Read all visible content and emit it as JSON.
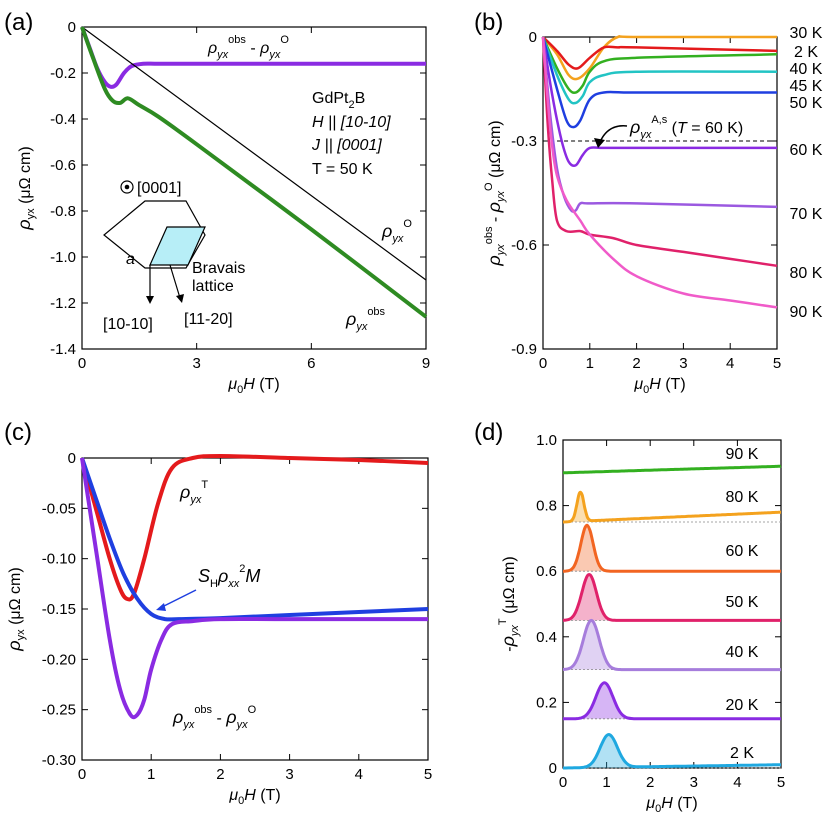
{
  "chart_data": [
    {
      "panel": "(a)",
      "type": "line",
      "xlabel": "μ0H (T)",
      "ylabel": "ρyx (μΩ cm)",
      "xlim": [
        0,
        9
      ],
      "ylim": [
        -1.4,
        0
      ],
      "xticks": [
        "0",
        "3",
        "6",
        "9"
      ],
      "yticks": [
        "0",
        "-0.2",
        "-0.4",
        "-0.6",
        "-0.8",
        "-1.0",
        "-1.2",
        "-1.4"
      ],
      "annotations": [
        "GdPt2B",
        "H || [10-10]",
        "J || [0001]",
        "T = 50 K",
        "[0001]",
        "a",
        "Bravais lattice",
        "[10-10]",
        "[11-20]"
      ],
      "series": [
        {
          "name": "ρyx^obs - ρyx^O",
          "color": "#8a2be2",
          "x": [
            0,
            0.2,
            0.4,
            0.6,
            0.75,
            0.9,
            1.1,
            1.3,
            1.6,
            2,
            3,
            6,
            9
          ],
          "y": [
            0,
            -0.09,
            -0.18,
            -0.24,
            -0.26,
            -0.25,
            -0.2,
            -0.17,
            -0.16,
            -0.16,
            -0.16,
            -0.16,
            -0.16
          ]
        },
        {
          "name": "ρyx^O",
          "color": "#000000",
          "x": [
            0,
            9
          ],
          "y": [
            0,
            -1.1
          ]
        },
        {
          "name": "ρyx^obs",
          "color": "#2e8b22",
          "x": [
            0,
            0.3,
            0.6,
            0.8,
            1.0,
            1.2,
            1.5,
            2,
            3,
            6,
            9
          ],
          "y": [
            0,
            -0.14,
            -0.27,
            -0.32,
            -0.33,
            -0.31,
            -0.34,
            -0.39,
            -0.51,
            -0.88,
            -1.26
          ]
        }
      ]
    },
    {
      "panel": "(b)",
      "type": "line",
      "xlabel": "μ0H (T)",
      "ylabel": "ρyx^obs - ρyx^O (μΩ cm)",
      "xlim": [
        0,
        5
      ],
      "ylim": [
        -0.9,
        0
      ],
      "xticks": [
        "0",
        "1",
        "2",
        "3",
        "4",
        "5"
      ],
      "yticks": [
        "0",
        "-0.3",
        "-0.6",
        "-0.9"
      ],
      "annotations": [
        "ρyx^A,s (T = 60 K)"
      ],
      "series": [
        {
          "name": "30 K",
          "color": "#f4a21e",
          "x": [
            0,
            0.3,
            0.55,
            0.75,
            1.0,
            1.3,
            1.6,
            2,
            5
          ],
          "y": [
            0,
            -0.05,
            -0.11,
            -0.12,
            -0.09,
            -0.03,
            0,
            0,
            0
          ]
        },
        {
          "name": "2 K",
          "color": "#e41a1c",
          "x": [
            0,
            0.3,
            0.55,
            0.75,
            1.0,
            1.3,
            1.6,
            2,
            5
          ],
          "y": [
            0,
            -0.04,
            -0.08,
            -0.09,
            -0.06,
            -0.03,
            -0.03,
            -0.03,
            -0.04
          ]
        },
        {
          "name": "40 K",
          "color": "#33b020",
          "x": [
            0,
            0.3,
            0.55,
            0.7,
            0.85,
            1.0,
            1.3,
            2,
            5
          ],
          "y": [
            0,
            -0.09,
            -0.15,
            -0.16,
            -0.14,
            -0.1,
            -0.07,
            -0.06,
            -0.05
          ]
        },
        {
          "name": "45 K",
          "color": "#22c4c4",
          "x": [
            0,
            0.3,
            0.55,
            0.7,
            0.85,
            1.0,
            1.3,
            2,
            5
          ],
          "y": [
            0,
            -0.11,
            -0.18,
            -0.19,
            -0.17,
            -0.13,
            -0.11,
            -0.1,
            -0.1
          ]
        },
        {
          "name": "50 K",
          "color": "#1f3fe0",
          "x": [
            0,
            0.3,
            0.5,
            0.65,
            0.8,
            1.0,
            1.3,
            2,
            5
          ],
          "y": [
            0,
            -0.15,
            -0.24,
            -0.26,
            -0.24,
            -0.18,
            -0.16,
            -0.16,
            -0.16
          ]
        },
        {
          "name": "60 K",
          "color": "#8a2be2",
          "x": [
            0,
            0.2,
            0.4,
            0.55,
            0.7,
            0.85,
            1.0,
            1.3,
            2,
            5
          ],
          "y": [
            0,
            -0.17,
            -0.3,
            -0.36,
            -0.37,
            -0.34,
            -0.32,
            -0.32,
            -0.32,
            -0.32
          ]
        },
        {
          "name": "70 K",
          "color": "#9b59e0",
          "x": [
            0,
            0.15,
            0.3,
            0.45,
            0.6,
            0.7,
            0.8,
            1,
            2,
            5
          ],
          "y": [
            0,
            -0.22,
            -0.38,
            -0.46,
            -0.5,
            -0.5,
            -0.48,
            -0.48,
            -0.48,
            -0.49
          ]
        },
        {
          "name": "80 K",
          "color": "#e0216a",
          "x": [
            0,
            0.1,
            0.2,
            0.3,
            0.5,
            0.8,
            1.0,
            1.5,
            2,
            3,
            4,
            5
          ],
          "y": [
            0,
            -0.25,
            -0.42,
            -0.53,
            -0.56,
            -0.56,
            -0.57,
            -0.58,
            -0.6,
            -0.62,
            -0.64,
            -0.66
          ]
        },
        {
          "name": "90 K",
          "color": "#f05bc9",
          "x": [
            0,
            0.1,
            0.2,
            0.3,
            0.5,
            0.8,
            1.0,
            1.5,
            2,
            3,
            4,
            5
          ],
          "y": [
            0,
            -0.18,
            -0.32,
            -0.4,
            -0.47,
            -0.53,
            -0.57,
            -0.64,
            -0.69,
            -0.74,
            -0.76,
            -0.78
          ]
        }
      ],
      "dashed_lines": [
        0,
        -0.3
      ]
    },
    {
      "panel": "(c)",
      "type": "line",
      "xlabel": "μ0H (T)",
      "ylabel": "ρyx (μΩ cm)",
      "xlim": [
        0,
        5
      ],
      "ylim": [
        -0.3,
        0
      ],
      "xticks": [
        "0",
        "1",
        "2",
        "3",
        "4",
        "5"
      ],
      "yticks": [
        "0",
        "-0.05",
        "-0.10",
        "-0.15",
        "-0.20",
        "-0.25",
        "-0.30"
      ],
      "series": [
        {
          "name": "ρyx^T",
          "color": "#e41a1c",
          "x": [
            0,
            0.2,
            0.4,
            0.55,
            0.65,
            0.75,
            0.9,
            1.1,
            1.3,
            1.6,
            2,
            3,
            4,
            5
          ],
          "y": [
            0,
            -0.05,
            -0.1,
            -0.13,
            -0.14,
            -0.135,
            -0.1,
            -0.045,
            -0.01,
            0,
            0.002,
            0,
            -0.002,
            -0.005
          ]
        },
        {
          "name": "SHρxx^2M",
          "color": "#1f3fe0",
          "x": [
            0,
            0.2,
            0.4,
            0.6,
            0.8,
            1.0,
            1.2,
            1.4,
            2,
            3,
            4,
            5
          ],
          "y": [
            0,
            -0.04,
            -0.08,
            -0.115,
            -0.14,
            -0.155,
            -0.16,
            -0.16,
            -0.159,
            -0.156,
            -0.153,
            -0.15
          ]
        },
        {
          "name": "ρyx^obs - ρyx^O",
          "color": "#8a2be2",
          "x": [
            0,
            0.2,
            0.4,
            0.55,
            0.7,
            0.8,
            0.9,
            1.0,
            1.15,
            1.3,
            1.6,
            2,
            3,
            5
          ],
          "y": [
            0,
            -0.09,
            -0.18,
            -0.23,
            -0.255,
            -0.255,
            -0.24,
            -0.21,
            -0.18,
            -0.165,
            -0.162,
            -0.16,
            -0.16,
            -0.16
          ]
        }
      ],
      "annotations": [
        "SHρxx^2M"
      ]
    },
    {
      "panel": "(d)",
      "type": "area",
      "xlabel": "μ0H (T)",
      "ylabel": "-ρyx^T (μΩ cm)",
      "xlim": [
        0,
        5
      ],
      "ylim": [
        0,
        1.0
      ],
      "xticks": [
        "0",
        "1",
        "2",
        "3",
        "4",
        "5"
      ],
      "yticks": [
        "0",
        "0.2",
        "0.4",
        "0.6",
        "0.8",
        "1.0"
      ],
      "series": [
        {
          "name": "90 K",
          "color": "#33b020",
          "base": 0.9,
          "peak_x": 0,
          "peak_h": 0,
          "width": 0,
          "end": 0.92
        },
        {
          "name": "80 K",
          "color": "#f4a21e",
          "base": 0.75,
          "peak_x": 0.4,
          "peak_h": 0.09,
          "width": 0.14,
          "end": 0.78
        },
        {
          "name": "60 K",
          "color": "#f26522",
          "base": 0.6,
          "peak_x": 0.55,
          "peak_h": 0.14,
          "width": 0.25,
          "end": 0.6
        },
        {
          "name": "50 K",
          "color": "#e0216a",
          "base": 0.45,
          "peak_x": 0.6,
          "peak_h": 0.14,
          "width": 0.3,
          "end": 0.45
        },
        {
          "name": "40 K",
          "color": "#a67ddc",
          "base": 0.3,
          "peak_x": 0.65,
          "peak_h": 0.15,
          "width": 0.33,
          "end": 0.3
        },
        {
          "name": "20 K",
          "color": "#8a2be2",
          "base": 0.15,
          "peak_x": 0.95,
          "peak_h": 0.11,
          "width": 0.35,
          "end": 0.15
        },
        {
          "name": "2 K",
          "color": "#1fa8e0",
          "base": 0.0,
          "peak_x": 1.05,
          "peak_h": 0.1,
          "width": 0.35,
          "end": 0.01
        }
      ]
    }
  ],
  "labels": {
    "a_panel": "(a)",
    "b_panel": "(b)",
    "c_panel": "(c)",
    "d_panel": "(d)",
    "gd": "GdPt",
    "gd_sub": "2",
    "gd_b": "B",
    "h_par": "H || [10-10]",
    "j_par": "J || [0001]",
    "t50": "T = 50 K",
    "dir0001": "[0001]",
    "a_lat": "a",
    "bravais1": "Bravais",
    "bravais2": "lattice",
    "dir1010": "[10-10]",
    "dir1120": "[11-20]"
  }
}
